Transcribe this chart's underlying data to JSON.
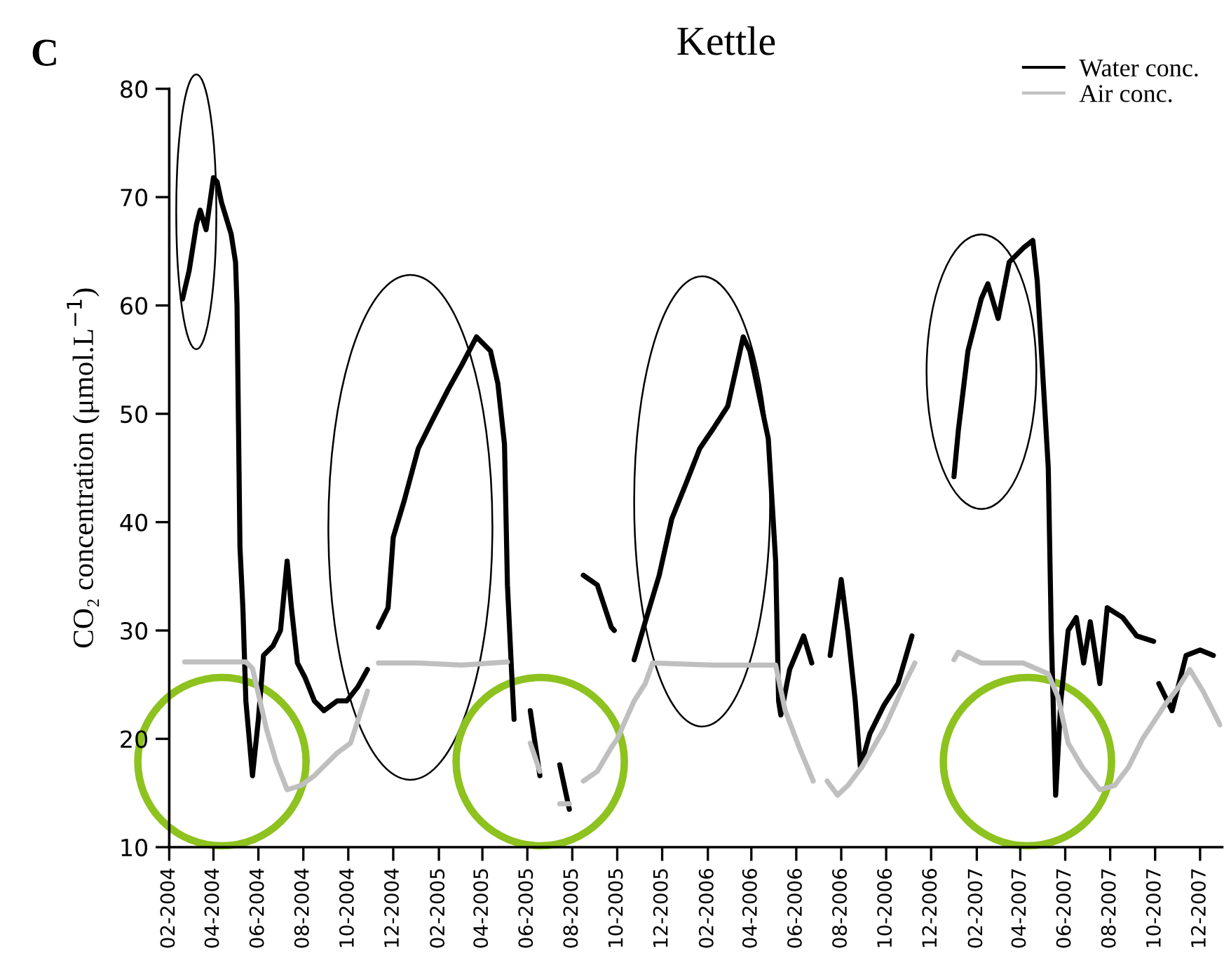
{
  "chart_data": {
    "type": "line",
    "title": "Kettle",
    "ylabel": "CO₂ concentration (μmol.L$^{−1}$)",
    "annotations": [
      "C"
    ],
    "xlim": [
      "2004-02-01",
      "2007-12-31"
    ],
    "xticks": [
      {
        "value": "2004-02",
        "label": "02-2004"
      },
      {
        "value": "2004-04",
        "label": "04-2004"
      },
      {
        "value": "2004-06",
        "label": "06-2004"
      },
      {
        "value": "2004-08",
        "label": "08-2004"
      },
      {
        "value": "2004-10",
        "label": "10-2004"
      },
      {
        "value": "2004-12",
        "label": "12-2004"
      },
      {
        "value": "2005-02",
        "label": "02-2005"
      },
      {
        "value": "2005-04",
        "label": "04-2005"
      },
      {
        "value": "2005-06",
        "label": "06-2005"
      },
      {
        "value": "2005-08",
        "label": "08-2005"
      },
      {
        "value": "2005-10",
        "label": "10-2005"
      },
      {
        "value": "2005-12",
        "label": "12-2005"
      },
      {
        "value": "2006-02",
        "label": "02-2006"
      },
      {
        "value": "2006-04",
        "label": "04-2006"
      },
      {
        "value": "2006-06",
        "label": "06-2006"
      },
      {
        "value": "2006-08",
        "label": "08-2006"
      },
      {
        "value": "2006-10",
        "label": "10-2006"
      },
      {
        "value": "2006-12",
        "label": "12-2006"
      },
      {
        "value": "2007-02",
        "label": "02-2007"
      },
      {
        "value": "2007-04",
        "label": "04-2007"
      },
      {
        "value": "2007-06",
        "label": "06-2007"
      },
      {
        "value": "2007-08",
        "label": "08-2007"
      },
      {
        "value": "2007-10",
        "label": "10-2007"
      },
      {
        "value": "2007-12",
        "label": "12-2007"
      }
    ],
    "ylim": [
      10,
      80
    ],
    "yticks": [
      10,
      20,
      30,
      40,
      50,
      60,
      70,
      80
    ],
    "legend": "top right",
    "series": [
      {
        "name": "Water conc.",
        "color": "#000000",
        "x": [
          "2004-02-19",
          "2004-02-28",
          "2004-03-09",
          "2004-03-14",
          "2004-03-22",
          "2004-04-01",
          "2004-04-06",
          "2004-04-12",
          "2004-04-25",
          "2004-05-01",
          "2004-05-03",
          "2004-05-07",
          "2004-05-11",
          "2004-05-15",
          "2004-05-24",
          "2004-06-01",
          "2004-06-08",
          "2004-06-21",
          "2004-07-01",
          "2004-07-10",
          "2004-07-16",
          "2004-07-24",
          "2004-08-03",
          "2004-08-16",
          "2004-08-29",
          "2004-09-16",
          "2004-09-29",
          "2004-10-14",
          "2004-10-27",
          "2004-11-04",
          "2004-11-11",
          "2004-11-24",
          "2004-12-01",
          "2004-12-16",
          "2005-01-04",
          "2005-01-23",
          "2005-02-14",
          "2005-03-04",
          "2005-03-24",
          "2005-04-12",
          "2005-04-22",
          "2005-05-01",
          "2005-05-05",
          "2005-05-11",
          "2005-05-14",
          "2005-05-25",
          "2005-06-05",
          "2005-06-18",
          "2005-07-01",
          "2005-07-15",
          "2005-07-28",
          "2005-08-08",
          "2005-08-16",
          "2005-09-04",
          "2005-09-23",
          "2005-09-27",
          "2005-10-10",
          "2005-10-24",
          "2005-11-08",
          "2005-11-27",
          "2005-12-14",
          "2006-01-02",
          "2006-01-21",
          "2006-02-09",
          "2006-02-28",
          "2006-03-21",
          "2006-03-30",
          "2006-04-24",
          "2006-05-04",
          "2006-05-08",
          "2006-05-11",
          "2006-05-23",
          "2006-06-11",
          "2006-06-22",
          "2006-07-05",
          "2006-07-17",
          "2006-08-01",
          "2006-08-10",
          "2006-08-20",
          "2006-08-27",
          "2006-09-09",
          "2006-09-28",
          "2006-10-17",
          "2006-11-05",
          "2006-12-01",
          "2007-01-01",
          "2007-01-07",
          "2007-01-20",
          "2007-02-07",
          "2007-02-16",
          "2007-03-02",
          "2007-03-17",
          "2007-04-05",
          "2007-04-18",
          "2007-04-24",
          "2007-05-09",
          "2007-05-13",
          "2007-05-19",
          "2007-05-26",
          "2007-06-05",
          "2007-06-16",
          "2007-06-26",
          "2007-07-05",
          "2007-07-18",
          "2007-07-28",
          "2007-08-18",
          "2007-09-06",
          "2007-09-29",
          "2007-10-03",
          "2007-10-06",
          "2007-10-24",
          "2007-11-12",
          "2007-12-01",
          "2007-12-19"
        ],
        "values": [
          60.6,
          63.2,
          67.5,
          68.8,
          67,
          71.8,
          71.4,
          69.5,
          66.6,
          64,
          60,
          37.7,
          32,
          23.5,
          16.6,
          21.8,
          27.7,
          28.6,
          30,
          36.4,
          32,
          27,
          25.7,
          23.5,
          22.6,
          23.5,
          23.5,
          24.8,
          26.4,
          null,
          30.3,
          32.1,
          38.6,
          42,
          46.8,
          49.4,
          52.3,
          54.5,
          57.1,
          55.8,
          52.8,
          47.2,
          34.2,
          25.7,
          21.8,
          null,
          22.6,
          16.6,
          null,
          17.6,
          13.5,
          null,
          35.1,
          34.2,
          30.3,
          30,
          null,
          27.3,
          30.8,
          35.1,
          40.3,
          43.5,
          46.8,
          48.7,
          50.7,
          57.1,
          55.8,
          47.7,
          36.4,
          23.5,
          22.2,
          26.4,
          29.5,
          27,
          null,
          27.7,
          34.7,
          29.9,
          23.5,
          17.4,
          20.5,
          23.1,
          25.1,
          29.5,
          null,
          44.2,
          48.5,
          55.8,
          60.6,
          62,
          58.8,
          64,
          65.3,
          66,
          62.3,
          45,
          30,
          14.8,
          23.5,
          30,
          31.2,
          27,
          30.8,
          25.1,
          32.1,
          31.2,
          29.5,
          29,
          null,
          25.1,
          22.6,
          27.7,
          28.2,
          27.7
        ]
      },
      {
        "name": "Air conc.",
        "color": "#bfbfbf",
        "x": [
          "2004-02-22",
          "2004-05-15",
          "2004-05-24",
          "2004-06-12",
          "2004-06-25",
          "2004-07-10",
          "2004-07-29",
          "2004-08-16",
          "2004-09-16",
          "2004-10-04",
          "2004-10-27",
          "2004-11-04",
          "2004-11-11",
          "2005-01-04",
          "2005-03-04",
          "2005-05-05",
          "2005-05-25",
          "2005-06-05",
          "2005-06-18",
          "2005-07-01",
          "2005-07-15",
          "2005-07-28",
          "2005-08-08",
          "2005-08-16",
          "2005-09-04",
          "2005-09-23",
          "2005-10-01",
          "2005-10-24",
          "2005-11-08",
          "2005-11-18",
          "2006-02-09",
          "2006-05-04",
          "2006-05-17",
          "2006-06-05",
          "2006-06-24",
          "2006-07-05",
          "2006-07-13",
          "2006-07-27",
          "2006-08-10",
          "2006-08-29",
          "2006-09-28",
          "2006-10-26",
          "2006-11-09",
          "2006-12-01",
          "2007-01-01",
          "2007-01-07",
          "2007-02-07",
          "2007-04-05",
          "2007-05-09",
          "2007-05-22",
          "2007-06-05",
          "2007-06-24",
          "2007-07-18",
          "2007-08-07",
          "2007-08-26",
          "2007-09-14",
          "2007-10-14",
          "2007-11-02",
          "2007-11-17",
          "2007-12-05",
          "2007-12-28"
        ],
        "values": [
          27.1,
          27.1,
          26.5,
          20.9,
          17.9,
          15.3,
          15.7,
          16.6,
          18.7,
          19.6,
          24.4,
          null,
          27,
          27,
          26.8,
          27.1,
          null,
          19.6,
          17,
          null,
          14,
          14,
          null,
          16.1,
          17,
          19.2,
          20,
          23.5,
          25.1,
          27,
          26.8,
          26.8,
          22.6,
          19.2,
          16.1,
          null,
          16.1,
          14.8,
          15.7,
          17.4,
          20.9,
          25.1,
          27,
          null,
          27.3,
          28,
          27,
          27,
          26,
          23.9,
          19.6,
          17.4,
          15.3,
          15.7,
          17.4,
          20,
          23.1,
          24.8,
          26.4,
          24.4,
          21.3
        ]
      }
    ]
  }
}
